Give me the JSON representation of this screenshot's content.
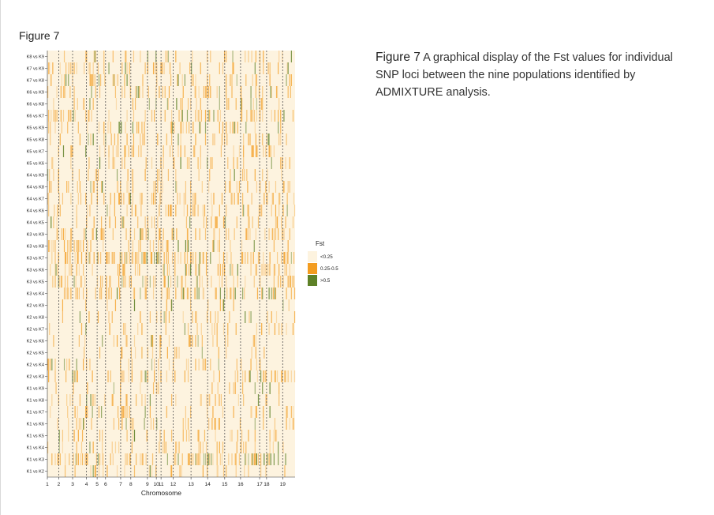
{
  "figure_label": "Figure 7",
  "caption": {
    "title": "Figure 7",
    "text": " A graphical display of the Fst values for individual SNP loci between the nine populations identified by ADMIXTURE analysis."
  },
  "colors": {
    "low": "#fdf3df",
    "mid": "#f39c1f",
    "high": "#5e8127"
  },
  "chart_data": {
    "type": "heatmap",
    "title": "",
    "xlabel": "Chromosome",
    "ylabel": "",
    "rows": [
      "K8 vs K9",
      "K7 vs K9",
      "K7 vs K8",
      "K6 vs K9",
      "K6 vs K8",
      "K6 vs K7",
      "K5 vs K9",
      "K5 vs K8",
      "K5 vs K7",
      "K5 vs K6",
      "K4 vs K9",
      "K4 vs K8",
      "K4 vs K7",
      "K4 vs K6",
      "K4 vs K5",
      "K3 vs K9",
      "K3 vs K8",
      "K3 vs K7",
      "K3 vs K6",
      "K3 vs K5",
      "K3 vs K4",
      "K2 vs K9",
      "K2 vs K8",
      "K2 vs K7",
      "K2 vs K6",
      "K2 vs K5",
      "K2 vs K4",
      "K2 vs K3",
      "K1 vs K9",
      "K1 vs K8",
      "K1 vs K7",
      "K1 vs K6",
      "K1 vs K5",
      "K1 vs K4",
      "K1 vs K3",
      "K1 vs K2"
    ],
    "row_intensity": [
      0.28,
      0.3,
      0.26,
      0.28,
      0.24,
      0.36,
      0.26,
      0.28,
      0.32,
      0.26,
      0.24,
      0.26,
      0.36,
      0.26,
      0.24,
      0.42,
      0.34,
      0.52,
      0.38,
      0.4,
      0.44,
      0.12,
      0.14,
      0.2,
      0.14,
      0.14,
      0.16,
      0.34,
      0.22,
      0.22,
      0.28,
      0.24,
      0.22,
      0.22,
      0.62,
      0.18
    ],
    "chromosomes": [
      "1",
      "2",
      "3",
      "4",
      "5",
      "6",
      "7",
      "8",
      "9",
      "10",
      "11",
      "12",
      "13",
      "14",
      "15",
      "16",
      "17",
      "18",
      "19"
    ],
    "chromosome_fraction": [
      0.0,
      0.046,
      0.102,
      0.158,
      0.201,
      0.235,
      0.296,
      0.337,
      0.404,
      0.44,
      0.459,
      0.508,
      0.58,
      0.647,
      0.716,
      0.78,
      0.857,
      0.885,
      0.95
    ],
    "legend": {
      "title": "Fst",
      "categories": [
        {
          "label": "<0.25",
          "range": [
            0,
            0.25
          ],
          "color": "#fdf3df"
        },
        {
          "label": "0.25-0.5",
          "range": [
            0.25,
            0.5
          ],
          "color": "#f39c1f"
        },
        {
          "label": ">0.5",
          "range": [
            0.5,
            1.0
          ],
          "color": "#5e8127"
        }
      ]
    }
  }
}
